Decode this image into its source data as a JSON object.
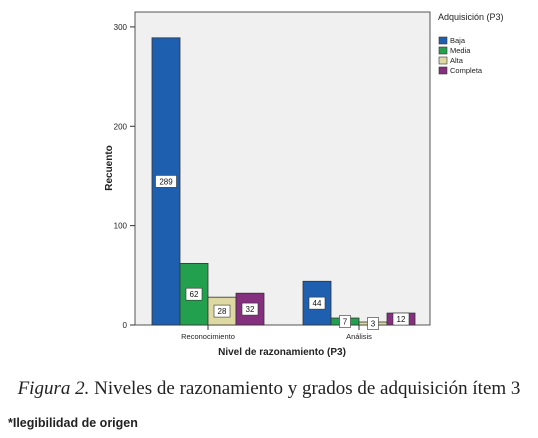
{
  "chart_data": {
    "type": "bar",
    "title": "",
    "xlabel": "Nivel de razonamiento (P3)",
    "ylabel": "Recuento",
    "ylim": [
      0,
      300
    ],
    "yticks": [
      0,
      100,
      200,
      300
    ],
    "categories": [
      "Reconocimiento",
      "Análisis"
    ],
    "legend_title": "Adquisición (P3)",
    "legend_position": "top-right outside plot",
    "grid": false,
    "series": [
      {
        "name": "Baja",
        "color": "#1f5fb0",
        "values": [
          289,
          44
        ]
      },
      {
        "name": "Media",
        "color": "#23a04e",
        "values": [
          62,
          7
        ]
      },
      {
        "name": "Alta",
        "color": "#ded9a2",
        "values": [
          28,
          3
        ]
      },
      {
        "name": "Completa",
        "color": "#84307f",
        "values": [
          32,
          12
        ]
      }
    ]
  },
  "caption": {
    "figure_label": "Figura 2.",
    "text": " Niveles de razonamiento y grados de adquisición ítem 3"
  },
  "note": "*Ilegibilidad de origen"
}
